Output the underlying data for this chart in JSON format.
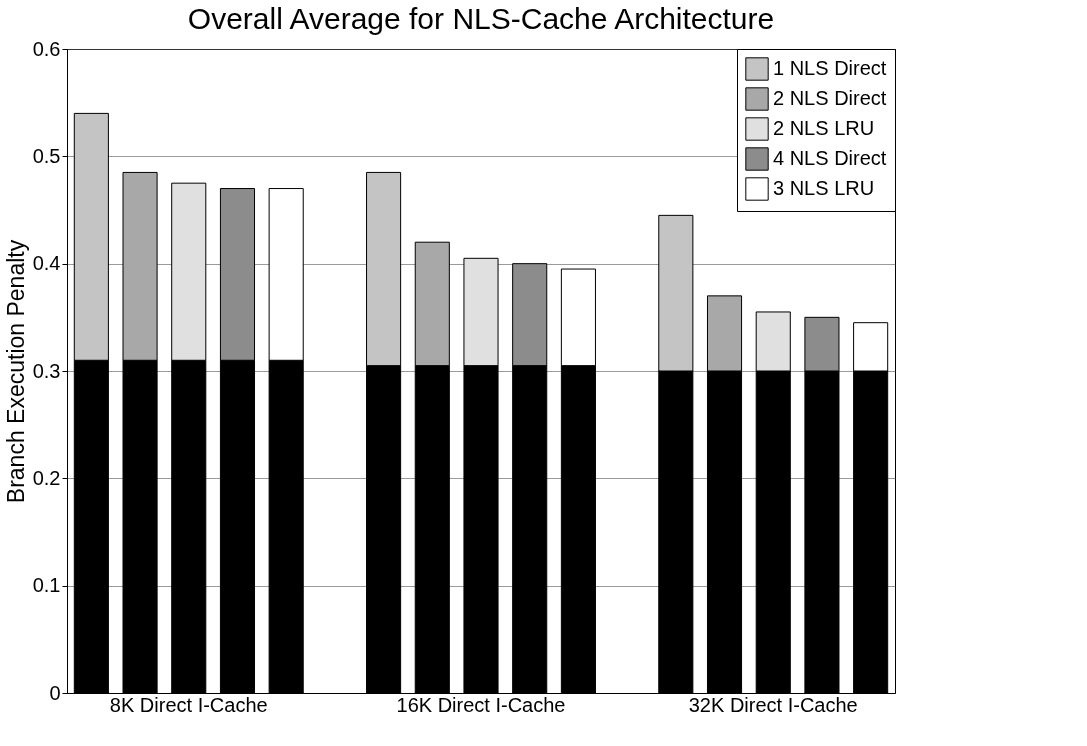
{
  "chart_data": {
    "type": "bar",
    "stacked": true,
    "title": "Overall Average for NLS-Cache Architecture",
    "ylabel": "Branch Execution Penalty",
    "categories": [
      null,
      null,
      "8K Direct I-Cache",
      null,
      null,
      null,
      null,
      null,
      "16K Direct I-Cache",
      null,
      null,
      null,
      null,
      null,
      "32K Direct I-Cache",
      null,
      null
    ],
    "series": [
      {
        "color": "#000000",
        "values": [
          0.31,
          0.31,
          0.31,
          0.31,
          0.31,
          null,
          0.305,
          0.305,
          0.305,
          0.305,
          0.305,
          null,
          0.3,
          0.3,
          0.3,
          0.3,
          0.3
        ]
      },
      {
        "name": "1 NLS Direct",
        "color": "#c4c4c4",
        "values": [
          0.23,
          null,
          null,
          null,
          null,
          null,
          0.18,
          null,
          null,
          null,
          null,
          null,
          0.145,
          null,
          null,
          null,
          null
        ]
      },
      {
        "name": "2 NLS Direct",
        "color": "#a8a8a8",
        "values": [
          null,
          0.175,
          null,
          null,
          null,
          null,
          null,
          0.115,
          null,
          null,
          null,
          null,
          null,
          0.07,
          null,
          null,
          null
        ]
      },
      {
        "name": "2 NLS LRU",
        "color": "#e0e0e0",
        "values": [
          null,
          null,
          0.165,
          null,
          null,
          null,
          null,
          null,
          0.1,
          null,
          null,
          null,
          null,
          null,
          0.055,
          null,
          null
        ]
      },
      {
        "name": "4 NLS Direct",
        "color": "#8c8c8c",
        "values": [
          null,
          null,
          null,
          0.16,
          null,
          null,
          null,
          null,
          null,
          0.095,
          null,
          null,
          null,
          null,
          null,
          0.05,
          null
        ]
      },
      {
        "name": "3 NLS LRU",
        "color": "#ffffff",
        "values": [
          null,
          null,
          null,
          null,
          0.16,
          null,
          null,
          null,
          null,
          null,
          0.09,
          null,
          null,
          null,
          null,
          null,
          0.045
        ]
      }
    ],
    "ylim": [
      0,
      0.6
    ],
    "yticks": [
      0,
      0.1,
      0.2,
      0.3,
      0.4,
      0.5,
      0.6
    ],
    "grid": "y",
    "legend": "top right"
  }
}
